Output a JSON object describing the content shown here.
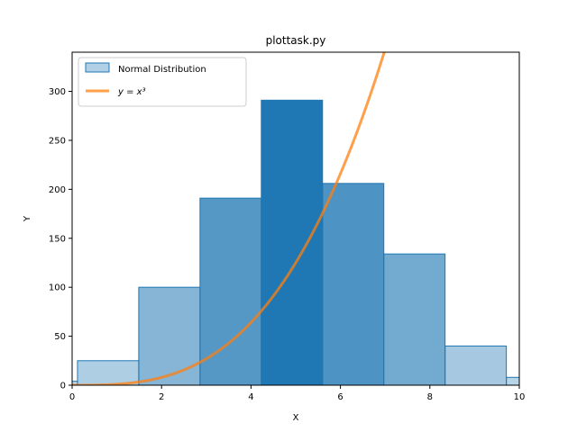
{
  "chart_data": {
    "type": "bar",
    "title": "plottask.py",
    "xlabel": "X",
    "ylabel": "Y",
    "xlim": [
      0,
      10
    ],
    "ylim": [
      0,
      340
    ],
    "xticks": [
      "0",
      "2",
      "4",
      "6",
      "8",
      "10"
    ],
    "yticks": [
      "0",
      "50",
      "100",
      "150",
      "200",
      "250",
      "300"
    ],
    "grid": false,
    "legend_position": "top-left",
    "histogram": {
      "name": "Normal Distribution",
      "bins": [
        {
          "start": -1.25,
          "end": 0.12,
          "value": 4
        },
        {
          "start": 0.12,
          "end": 1.49,
          "value": 25
        },
        {
          "start": 1.49,
          "end": 2.86,
          "value": 100
        },
        {
          "start": 2.86,
          "end": 4.23,
          "value": 191
        },
        {
          "start": 4.23,
          "end": 5.6,
          "value": 291
        },
        {
          "start": 5.6,
          "end": 6.97,
          "value": 206
        },
        {
          "start": 6.97,
          "end": 8.34,
          "value": 134
        },
        {
          "start": 8.34,
          "end": 9.71,
          "value": 40
        },
        {
          "start": 9.71,
          "end": 11.08,
          "value": 8
        }
      ],
      "edge_color": "#1f77b4"
    },
    "curve": {
      "name": "y = x³",
      "function": "x^3",
      "color": "#ff7f0e",
      "x_range": [
        0,
        10
      ]
    }
  }
}
